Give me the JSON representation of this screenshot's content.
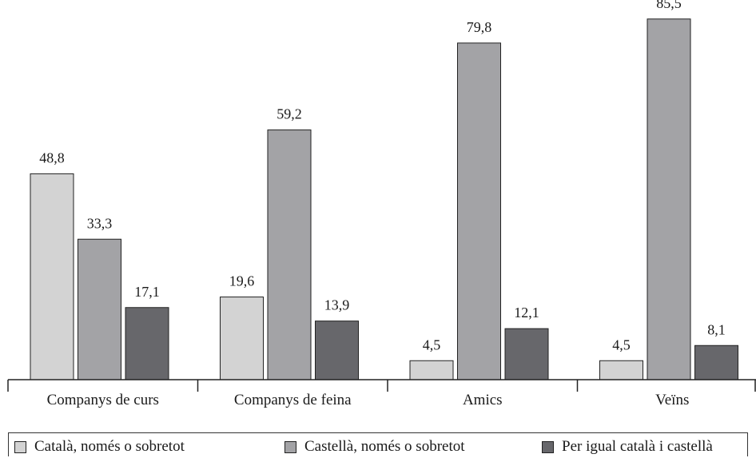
{
  "chart_data": {
    "type": "bar",
    "title": "",
    "xlabel": "",
    "ylabel": "",
    "ylim": [
      0,
      90
    ],
    "grid": false,
    "legend_position": "bottom",
    "categories": [
      "Companys de curs",
      "Companys de feina",
      "Amics",
      "Veïns"
    ],
    "series": [
      {
        "name": "Català, només o sobretot",
        "color": "#d3d3d3",
        "values": [
          48.8,
          19.6,
          4.5,
          4.5
        ],
        "labels": [
          "48,8",
          "19,6",
          "4,5",
          "4,5"
        ]
      },
      {
        "name": "Castellà, només o sobretot",
        "color": "#a3a3a6",
        "values": [
          33.3,
          59.2,
          79.8,
          85.5
        ],
        "labels": [
          "33,3",
          "59,2",
          "79,8",
          "85,5"
        ]
      },
      {
        "name": "Per igual català i castellà",
        "color": "#67676b",
        "values": [
          17.1,
          13.9,
          12.1,
          8.1
        ],
        "labels": [
          "17,1",
          "13,9",
          "12,1",
          "8,1"
        ]
      }
    ]
  }
}
